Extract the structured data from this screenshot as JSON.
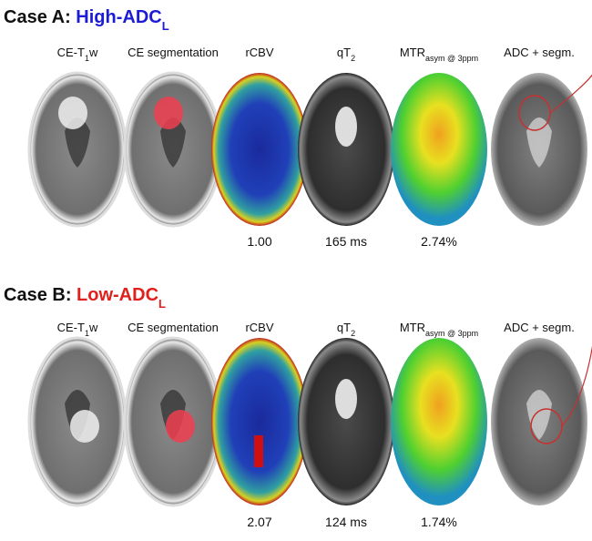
{
  "panels": [
    {
      "title": {
        "prefix": "Case A: ",
        "highlight": "High-ADC",
        "sub": "L"
      },
      "highlight_color": "#1c1cd6",
      "columns": [
        {
          "main": "CE-T",
          "sub": "1",
          "tail": "w"
        },
        {
          "main": "CE segmentation"
        },
        {
          "main": "rCBV"
        },
        {
          "main": "qT",
          "sub": "2"
        },
        {
          "main": "MTR",
          "sub": "asym @ 3ppm"
        },
        {
          "main": "ADC + segm."
        }
      ],
      "values": [
        "1.00",
        "165 ms",
        "2.74%"
      ]
    },
    {
      "title": {
        "prefix": "Case B: ",
        "highlight": "Low-ADC",
        "sub": "L"
      },
      "highlight_color": "#e0201c",
      "columns": [
        {
          "main": "CE-T",
          "sub": "1",
          "tail": "w"
        },
        {
          "main": "CE segmentation"
        },
        {
          "main": "rCBV"
        },
        {
          "main": "qT",
          "sub": "2"
        },
        {
          "main": "MTR",
          "sub": "asym @ 3ppm"
        },
        {
          "main": "ADC + segm."
        }
      ],
      "values": [
        "2.07",
        "124 ms",
        "1.74%"
      ]
    }
  ]
}
